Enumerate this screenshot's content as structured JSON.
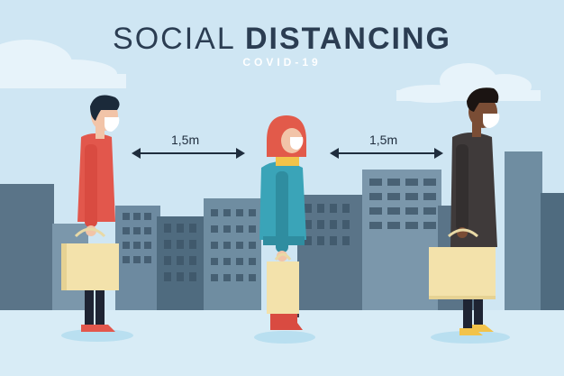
{
  "header": {
    "title_light": "SOCIAL ",
    "title_bold": "DISTANCING",
    "subtitle": "COVID-19"
  },
  "distances": {
    "left": "1,5m",
    "right": "1,5m"
  },
  "colors": {
    "sky": "#cfe6f3",
    "building_dark": "#4f6b7f",
    "building_mid": "#6f8da1",
    "ground": "#d8ecf6",
    "title": "#2b3d52"
  }
}
